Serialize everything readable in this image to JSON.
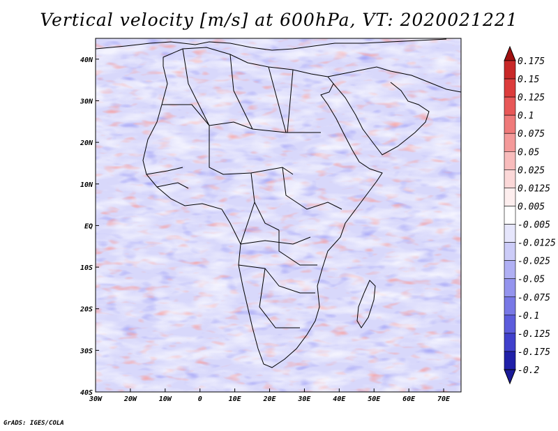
{
  "title": "Vertical velocity [m/s] at 600hPa, VT: 2020021221",
  "credit": "GrADS: IGES/COLA",
  "map": {
    "lon_range": [
      -30,
      75
    ],
    "lat_range": [
      -40,
      45
    ],
    "lat_ticks": [
      {
        "lat": 40,
        "label": "40N"
      },
      {
        "lat": 30,
        "label": "30N"
      },
      {
        "lat": 20,
        "label": "20N"
      },
      {
        "lat": 10,
        "label": "10N"
      },
      {
        "lat": 0,
        "label": "EQ"
      },
      {
        "lat": -10,
        "label": "10S"
      },
      {
        "lat": -20,
        "label": "20S"
      },
      {
        "lat": -30,
        "label": "30S"
      },
      {
        "lat": -40,
        "label": "40S"
      }
    ],
    "lon_ticks": [
      {
        "lon": -30,
        "label": "30W"
      },
      {
        "lon": -20,
        "label": "20W"
      },
      {
        "lon": -10,
        "label": "10W"
      },
      {
        "lon": 0,
        "label": "0"
      },
      {
        "lon": 10,
        "label": "10E"
      },
      {
        "lon": 20,
        "label": "20E"
      },
      {
        "lon": 30,
        "label": "30E"
      },
      {
        "lon": 40,
        "label": "40E"
      },
      {
        "lon": 50,
        "label": "50E"
      },
      {
        "lon": 60,
        "label": "60E"
      },
      {
        "lon": 70,
        "label": "70E"
      }
    ],
    "field_colors": {
      "neutral": "#ffffff",
      "positive": "#e05050",
      "negative": "#6a6af0",
      "base": "#d8d8fb"
    }
  },
  "colorbar": {
    "levels": [
      {
        "label": "0.175",
        "color": "#b01818"
      },
      {
        "label": "0.15",
        "color": "#c82828"
      },
      {
        "label": "0.125",
        "color": "#dc3c3c"
      },
      {
        "label": "0.1",
        "color": "#e85858"
      },
      {
        "label": "0.075",
        "color": "#ef7a7a"
      },
      {
        "label": "0.05",
        "color": "#f49a9a"
      },
      {
        "label": "0.025",
        "color": "#f8bcbc"
      },
      {
        "label": "0.0125",
        "color": "#fbd8d8"
      },
      {
        "label": "0.005",
        "color": "#fdeeee"
      },
      {
        "label": "-0.005",
        "color": "#ffffff"
      },
      {
        "label": "-0.0125",
        "color": "#e6e6fc"
      },
      {
        "label": "-0.025",
        "color": "#ccccf8"
      },
      {
        "label": "-0.05",
        "color": "#b0b0f4"
      },
      {
        "label": "-0.075",
        "color": "#9494ee"
      },
      {
        "label": "-0.1",
        "color": "#7878e6"
      },
      {
        "label": "-0.125",
        "color": "#5c5cdc"
      },
      {
        "label": "-0.175",
        "color": "#4040cc"
      },
      {
        "label": "-0.2",
        "color": "#2020a8"
      }
    ],
    "top_color": "#a01010",
    "bottom_color": "#1a1a98"
  }
}
